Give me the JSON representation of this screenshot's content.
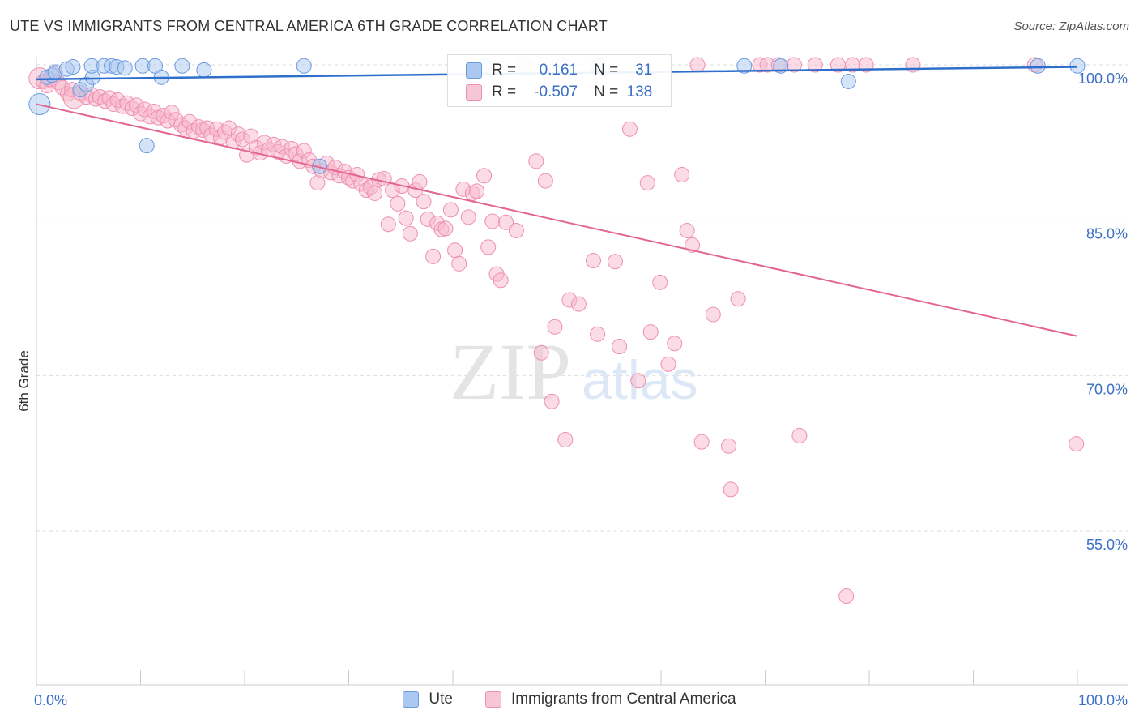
{
  "title": "UTE VS IMMIGRANTS FROM CENTRAL AMERICA 6TH GRADE CORRELATION CHART",
  "source": "Source: ZipAtlas.com",
  "watermark": {
    "zip": "ZIP",
    "atlas": "atlas"
  },
  "legend": {
    "r_label": "R =",
    "n_label": "N =",
    "rows": [
      {
        "name": "Ute",
        "r": "0.161",
        "n": "31"
      },
      {
        "name": "Immigrants from Central America",
        "r": "-0.507",
        "n": "138"
      }
    ]
  },
  "colors": {
    "ute_fill": "#aac8f0",
    "ute_stroke": "#6a9ae0",
    "ute_line": "#2f6fcc",
    "ca_fill": "#f7b8cc",
    "ca_stroke": "#ee8fb0",
    "ca_line": "#e36592",
    "axis_text": "#3b6fc4",
    "grid": "#dddddd"
  },
  "chart_data": {
    "type": "scatter",
    "title": "UTE VS IMMIGRANTS FROM CENTRAL AMERICA 6TH GRADE CORRELATION CHART",
    "xlabel": "",
    "ylabel": "6th Grade",
    "xlim": [
      0,
      100
    ],
    "ylim": [
      40,
      101.5
    ],
    "x_tick_labels": [
      "0.0%",
      "100.0%"
    ],
    "y_ticks": [
      100,
      85,
      70,
      55
    ],
    "y_tick_labels": [
      "100.0%",
      "85.0%",
      "70.0%",
      "55.0%"
    ],
    "series": [
      {
        "name": "Ute",
        "r": 0.161,
        "n": 31,
        "trend": {
          "x": [
            0,
            100
          ],
          "y": [
            98.6,
            99.8
          ]
        },
        "points": [
          {
            "x": 0.3,
            "y": 96.2,
            "big": true
          },
          {
            "x": 1.0,
            "y": 98.8
          },
          {
            "x": 1.5,
            "y": 99.0
          },
          {
            "x": 1.8,
            "y": 99.3
          },
          {
            "x": 2.9,
            "y": 99.6
          },
          {
            "x": 3.5,
            "y": 99.8
          },
          {
            "x": 4.2,
            "y": 97.6
          },
          {
            "x": 4.8,
            "y": 98.1
          },
          {
            "x": 5.4,
            "y": 98.8
          },
          {
            "x": 5.3,
            "y": 99.9
          },
          {
            "x": 6.5,
            "y": 99.9
          },
          {
            "x": 7.2,
            "y": 99.9
          },
          {
            "x": 7.7,
            "y": 99.8
          },
          {
            "x": 8.5,
            "y": 99.7
          },
          {
            "x": 10.2,
            "y": 99.9
          },
          {
            "x": 10.6,
            "y": 92.2
          },
          {
            "x": 11.4,
            "y": 99.9
          },
          {
            "x": 12.0,
            "y": 98.8
          },
          {
            "x": 14.0,
            "y": 99.9
          },
          {
            "x": 16.1,
            "y": 99.5
          },
          {
            "x": 25.7,
            "y": 99.9
          },
          {
            "x": 27.2,
            "y": 90.2
          },
          {
            "x": 43.0,
            "y": 99.9
          },
          {
            "x": 50.5,
            "y": 99.9
          },
          {
            "x": 54.0,
            "y": 99.9
          },
          {
            "x": 68.0,
            "y": 99.9
          },
          {
            "x": 71.5,
            "y": 99.9
          },
          {
            "x": 78.0,
            "y": 98.4
          },
          {
            "x": 96.2,
            "y": 99.9
          },
          {
            "x": 100.0,
            "y": 99.9
          }
        ]
      },
      {
        "name": "Immigrants from Central America",
        "r": -0.507,
        "n": 138,
        "trend": {
          "x": [
            0,
            100
          ],
          "y": [
            96.2,
            73.8
          ]
        },
        "points": [
          {
            "x": 0.3,
            "y": 98.7,
            "big": true
          },
          {
            "x": 0.7,
            "y": 98.4
          },
          {
            "x": 1.0,
            "y": 98.0
          },
          {
            "x": 1.3,
            "y": 98.6
          },
          {
            "x": 1.7,
            "y": 99.1
          },
          {
            "x": 2.1,
            "y": 98.3
          },
          {
            "x": 2.5,
            "y": 97.8
          },
          {
            "x": 3.0,
            "y": 97.2
          },
          {
            "x": 3.4,
            "y": 97.6
          },
          {
            "x": 3.6,
            "y": 96.8,
            "big": true
          },
          {
            "x": 4.2,
            "y": 97.3
          },
          {
            "x": 4.8,
            "y": 96.9
          },
          {
            "x": 5.3,
            "y": 97.1
          },
          {
            "x": 5.7,
            "y": 96.7
          },
          {
            "x": 6.1,
            "y": 96.9
          },
          {
            "x": 6.6,
            "y": 96.5
          },
          {
            "x": 7.0,
            "y": 96.8
          },
          {
            "x": 7.4,
            "y": 96.2
          },
          {
            "x": 7.8,
            "y": 96.6
          },
          {
            "x": 8.3,
            "y": 96.0
          },
          {
            "x": 8.7,
            "y": 96.3
          },
          {
            "x": 9.2,
            "y": 95.8
          },
          {
            "x": 9.6,
            "y": 96.1
          },
          {
            "x": 10.0,
            "y": 95.3
          },
          {
            "x": 10.4,
            "y": 95.7
          },
          {
            "x": 10.9,
            "y": 95.0
          },
          {
            "x": 11.3,
            "y": 95.5
          },
          {
            "x": 11.7,
            "y": 94.9
          },
          {
            "x": 12.2,
            "y": 95.1
          },
          {
            "x": 12.6,
            "y": 94.6
          },
          {
            "x": 13.0,
            "y": 95.4
          },
          {
            "x": 13.4,
            "y": 94.7
          },
          {
            "x": 13.9,
            "y": 94.2
          },
          {
            "x": 14.3,
            "y": 93.9
          },
          {
            "x": 14.7,
            "y": 94.5
          },
          {
            "x": 15.1,
            "y": 93.6
          },
          {
            "x": 15.6,
            "y": 94.0
          },
          {
            "x": 16.0,
            "y": 93.7
          },
          {
            "x": 16.4,
            "y": 93.9
          },
          {
            "x": 16.8,
            "y": 93.2
          },
          {
            "x": 17.3,
            "y": 93.8
          },
          {
            "x": 17.7,
            "y": 93.0
          },
          {
            "x": 18.1,
            "y": 93.5
          },
          {
            "x": 18.5,
            "y": 93.9
          },
          {
            "x": 18.9,
            "y": 92.6
          },
          {
            "x": 19.4,
            "y": 93.3
          },
          {
            "x": 19.8,
            "y": 92.8
          },
          {
            "x": 20.2,
            "y": 91.3
          },
          {
            "x": 20.6,
            "y": 93.1
          },
          {
            "x": 21.1,
            "y": 92.0
          },
          {
            "x": 21.5,
            "y": 91.5
          },
          {
            "x": 21.9,
            "y": 92.5
          },
          {
            "x": 22.3,
            "y": 91.8
          },
          {
            "x": 22.8,
            "y": 92.3
          },
          {
            "x": 23.2,
            "y": 91.6
          },
          {
            "x": 23.6,
            "y": 92.1
          },
          {
            "x": 24.0,
            "y": 91.2
          },
          {
            "x": 24.5,
            "y": 91.9
          },
          {
            "x": 24.9,
            "y": 91.4
          },
          {
            "x": 25.3,
            "y": 90.7
          },
          {
            "x": 25.7,
            "y": 91.7
          },
          {
            "x": 26.2,
            "y": 90.8
          },
          {
            "x": 26.6,
            "y": 90.2
          },
          {
            "x": 27.0,
            "y": 88.6
          },
          {
            "x": 27.4,
            "y": 89.8
          },
          {
            "x": 27.9,
            "y": 90.5
          },
          {
            "x": 28.3,
            "y": 89.6
          },
          {
            "x": 28.7,
            "y": 90.1
          },
          {
            "x": 29.1,
            "y": 89.3
          },
          {
            "x": 29.6,
            "y": 89.7
          },
          {
            "x": 30.0,
            "y": 89.1
          },
          {
            "x": 30.4,
            "y": 88.8
          },
          {
            "x": 30.8,
            "y": 89.4
          },
          {
            "x": 31.2,
            "y": 88.5
          },
          {
            "x": 31.7,
            "y": 87.9
          },
          {
            "x": 32.1,
            "y": 88.2
          },
          {
            "x": 32.5,
            "y": 87.6
          },
          {
            "x": 32.9,
            "y": 88.9
          },
          {
            "x": 33.4,
            "y": 89.0
          },
          {
            "x": 33.8,
            "y": 84.6
          },
          {
            "x": 34.2,
            "y": 87.9
          },
          {
            "x": 34.7,
            "y": 86.6
          },
          {
            "x": 35.1,
            "y": 88.3
          },
          {
            "x": 35.5,
            "y": 85.2
          },
          {
            "x": 35.9,
            "y": 83.7
          },
          {
            "x": 36.4,
            "y": 87.9
          },
          {
            "x": 36.8,
            "y": 88.7
          },
          {
            "x": 37.2,
            "y": 86.8
          },
          {
            "x": 37.6,
            "y": 85.1
          },
          {
            "x": 38.1,
            "y": 81.5
          },
          {
            "x": 38.5,
            "y": 84.7
          },
          {
            "x": 38.9,
            "y": 84.1
          },
          {
            "x": 39.3,
            "y": 84.2
          },
          {
            "x": 39.8,
            "y": 86.0
          },
          {
            "x": 40.2,
            "y": 82.1
          },
          {
            "x": 40.6,
            "y": 80.8
          },
          {
            "x": 41.0,
            "y": 88.0
          },
          {
            "x": 41.5,
            "y": 85.3
          },
          {
            "x": 41.9,
            "y": 87.6
          },
          {
            "x": 42.3,
            "y": 87.8
          },
          {
            "x": 43.0,
            "y": 89.3
          },
          {
            "x": 43.4,
            "y": 82.4
          },
          {
            "x": 43.8,
            "y": 84.9
          },
          {
            "x": 44.2,
            "y": 79.8
          },
          {
            "x": 44.6,
            "y": 79.2
          },
          {
            "x": 45.1,
            "y": 84.8
          },
          {
            "x": 46.1,
            "y": 84.0
          },
          {
            "x": 48.0,
            "y": 90.7
          },
          {
            "x": 48.5,
            "y": 72.2
          },
          {
            "x": 48.9,
            "y": 88.8
          },
          {
            "x": 49.8,
            "y": 74.7
          },
          {
            "x": 49.5,
            "y": 67.5
          },
          {
            "x": 50.8,
            "y": 63.8
          },
          {
            "x": 51.2,
            "y": 77.3
          },
          {
            "x": 52.1,
            "y": 76.9
          },
          {
            "x": 53.5,
            "y": 81.1
          },
          {
            "x": 53.9,
            "y": 74.0
          },
          {
            "x": 55.6,
            "y": 81.0
          },
          {
            "x": 56.0,
            "y": 72.8
          },
          {
            "x": 57.0,
            "y": 93.8
          },
          {
            "x": 57.8,
            "y": 69.5
          },
          {
            "x": 58.7,
            "y": 88.6
          },
          {
            "x": 59.0,
            "y": 74.2
          },
          {
            "x": 59.9,
            "y": 79.0
          },
          {
            "x": 60.7,
            "y": 71.1
          },
          {
            "x": 61.3,
            "y": 73.1
          },
          {
            "x": 62.0,
            "y": 89.4
          },
          {
            "x": 62.5,
            "y": 84.0
          },
          {
            "x": 63.0,
            "y": 82.6
          },
          {
            "x": 63.9,
            "y": 63.6
          },
          {
            "x": 65.0,
            "y": 75.9
          },
          {
            "x": 66.5,
            "y": 63.2
          },
          {
            "x": 66.7,
            "y": 59.0
          },
          {
            "x": 67.4,
            "y": 77.4
          },
          {
            "x": 73.3,
            "y": 64.2
          },
          {
            "x": 77.8,
            "y": 48.7
          },
          {
            "x": 99.9,
            "y": 63.4
          }
        ]
      },
      {
        "name": "Immigrants from Central America (top row)",
        "points": [
          {
            "x": 47.0,
            "y": 100.0
          },
          {
            "x": 63.5,
            "y": 100.0
          },
          {
            "x": 69.5,
            "y": 100.0
          },
          {
            "x": 70.2,
            "y": 100.0
          },
          {
            "x": 71.3,
            "y": 100.0
          },
          {
            "x": 72.8,
            "y": 100.0
          },
          {
            "x": 74.8,
            "y": 100.0
          },
          {
            "x": 77.0,
            "y": 100.0
          },
          {
            "x": 78.4,
            "y": 100.0
          },
          {
            "x": 79.7,
            "y": 100.0
          },
          {
            "x": 84.2,
            "y": 100.0
          },
          {
            "x": 95.9,
            "y": 100.0
          }
        ]
      }
    ]
  }
}
